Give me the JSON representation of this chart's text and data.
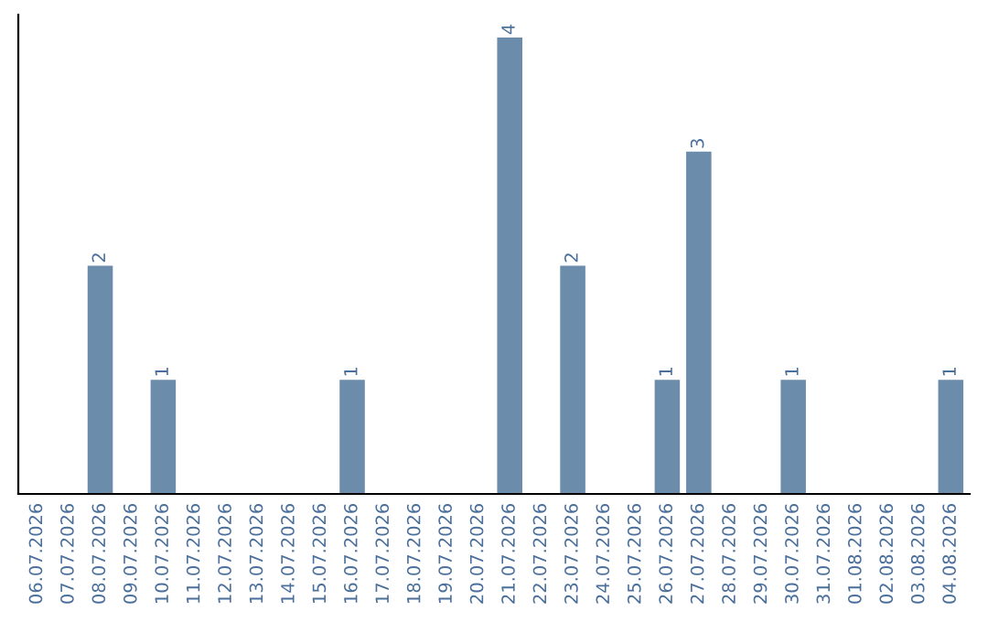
{
  "chart_data": {
    "type": "bar",
    "categories": [
      "06.07.2026",
      "07.07.2026",
      "08.07.2026",
      "09.07.2026",
      "10.07.2026",
      "11.07.2026",
      "12.07.2026",
      "13.07.2026",
      "14.07.2026",
      "15.07.2026",
      "16.07.2026",
      "17.07.2026",
      "18.07.2026",
      "19.07.2026",
      "20.07.2026",
      "21.07.2026",
      "22.07.2026",
      "23.07.2026",
      "24.07.2026",
      "25.07.2026",
      "26.07.2026",
      "27.07.2026",
      "28.07.2026",
      "29.07.2026",
      "30.07.2026",
      "31.07.2026",
      "01.08.2026",
      "02.08.2026",
      "03.08.2026",
      "04.08.2026"
    ],
    "values": [
      0,
      0,
      2,
      0,
      1,
      0,
      0,
      0,
      0,
      0,
      1,
      0,
      0,
      0,
      0,
      4,
      0,
      2,
      0,
      0,
      1,
      3,
      0,
      0,
      1,
      0,
      0,
      0,
      0,
      1
    ],
    "value_labels": [
      null,
      null,
      "2",
      null,
      "1",
      null,
      null,
      null,
      null,
      null,
      "1",
      null,
      null,
      null,
      null,
      "4",
      null,
      "2",
      null,
      null,
      "1",
      "3",
      null,
      null,
      "1",
      null,
      null,
      null,
      null,
      "1"
    ],
    "color": "#6b8cab",
    "ylim": [
      0,
      4.2
    ],
    "tick_labels": "x",
    "grid": false,
    "legend": false
  }
}
